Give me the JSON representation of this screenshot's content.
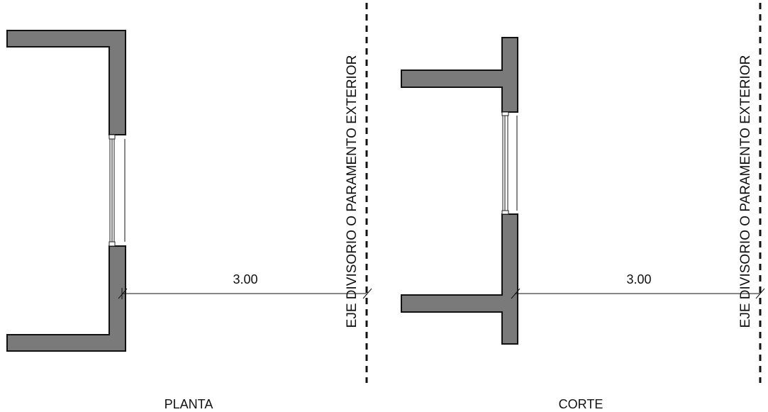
{
  "views": {
    "plan": {
      "caption": "PLANTA",
      "dimension": "3.00",
      "axis_label": "EJE DIVISORIO O PARAMENTO EXTERIOR"
    },
    "section": {
      "caption": "CORTE",
      "dimension": "3.00",
      "axis_label": "EJE DIVISORIO O PARAMENTO EXTERIOR"
    }
  },
  "colors": {
    "wall_fill": "#7a7a7a",
    "line": "#111111"
  }
}
